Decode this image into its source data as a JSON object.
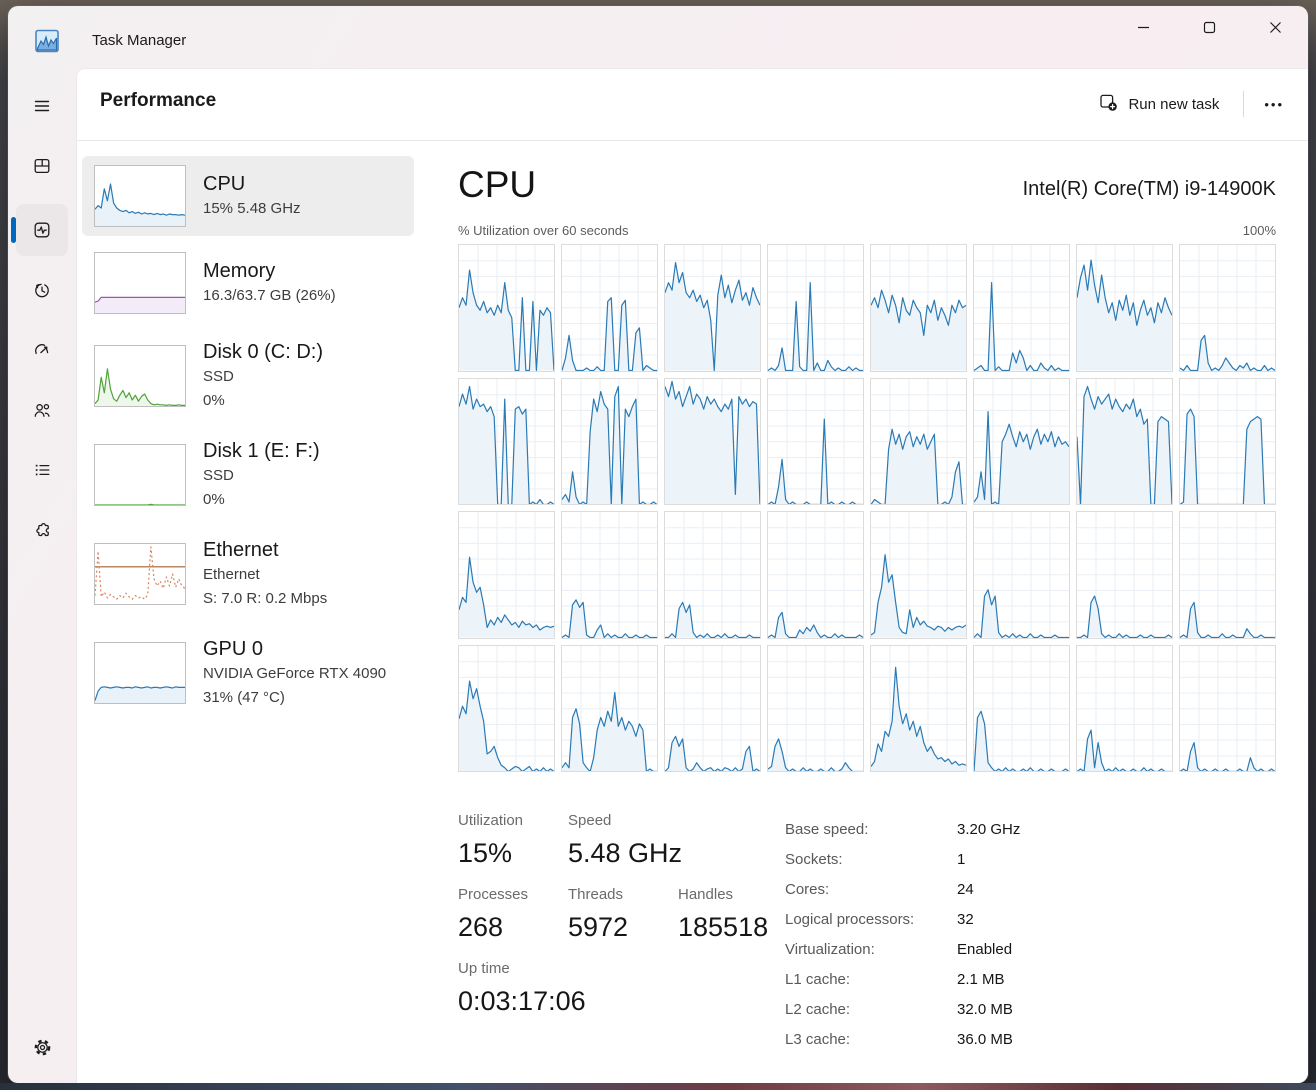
{
  "window": {
    "title": "Task Manager",
    "controls": [
      "minimize",
      "maximize",
      "close"
    ]
  },
  "sidebar": {
    "icons": [
      "menu-icon",
      "processes-icon",
      "performance-icon",
      "app-history-icon",
      "startup-apps-icon",
      "users-icon",
      "details-icon",
      "services-icon",
      "settings-icon"
    ],
    "selected": "performance-icon",
    "accent_color": "#0067c0"
  },
  "header": {
    "title": "Performance",
    "run_new_task": "Run new task",
    "more": "•••"
  },
  "perf_list": [
    {
      "id": "cpu",
      "title": "CPU",
      "lines": [
        "15%  5.48 GHz"
      ],
      "selected": true,
      "chart": {
        "color": "#2a7ab5",
        "fill": "#e9f2f9",
        "values": [
          28,
          34,
          30,
          62,
          42,
          70,
          38,
          30,
          26,
          24,
          26,
          22,
          24,
          21,
          23,
          20,
          22,
          20,
          21,
          19,
          21,
          19,
          20,
          18,
          20,
          19,
          19,
          18,
          19,
          18
        ]
      }
    },
    {
      "id": "memory",
      "title": "Memory",
      "lines": [
        "16.3/63.7 GB (26%)"
      ],
      "selected": false,
      "chart": {
        "color": "#9a55b2",
        "fill": "#f3ebf8",
        "values": [
          18,
          20,
          26,
          26,
          26,
          26,
          26,
          26,
          26,
          26,
          26,
          26,
          26,
          26,
          26,
          26,
          26,
          26,
          26,
          26,
          26,
          26,
          26,
          26,
          26,
          26,
          26,
          26,
          26,
          26
        ]
      }
    },
    {
      "id": "disk-0",
      "title": "Disk 0 (C: D:)",
      "lines": [
        "SSD",
        "0%"
      ],
      "selected": false,
      "chart": {
        "color": "#4fa33a",
        "fill": "#eef7eb",
        "values": [
          4,
          10,
          48,
          22,
          62,
          28,
          12,
          8,
          18,
          26,
          14,
          22,
          10,
          18,
          8,
          16,
          20,
          10,
          4,
          2,
          3,
          2,
          2,
          1,
          2,
          1,
          1,
          2,
          1,
          1
        ]
      }
    },
    {
      "id": "disk-1",
      "title": "Disk 1 (E: F:)",
      "lines": [
        "SSD",
        "0%"
      ],
      "selected": false,
      "chart": {
        "color": "#4fa33a",
        "fill": "#eef7eb",
        "values": [
          0,
          0,
          0,
          0,
          0,
          0,
          0,
          0,
          0,
          0,
          0,
          0,
          0,
          0,
          0,
          0,
          0,
          0,
          1,
          0,
          0,
          0,
          0,
          0,
          0,
          0,
          0,
          0,
          0,
          0
        ]
      }
    },
    {
      "id": "ethernet",
      "title": "Ethernet",
      "lines": [
        "Ethernet",
        "S: 7.0 R: 0.2 Mbps"
      ],
      "selected": false,
      "chart": {
        "color": "#d8825f",
        "dotted": true,
        "refline": 62,
        "refcolor": "#a2602f",
        "values": [
          14,
          88,
          12,
          20,
          10,
          16,
          12,
          8,
          14,
          10,
          18,
          12,
          8,
          14,
          10,
          12,
          8,
          16,
          95,
          42,
          30,
          38,
          26,
          45,
          30,
          50,
          28,
          42,
          30,
          26
        ]
      }
    },
    {
      "id": "gpu-0",
      "title": "GPU 0",
      "lines": [
        "NVIDIA GeForce RTX 4090",
        "31% (47 °C)"
      ],
      "selected": false,
      "chart": {
        "color": "#2a7ab5",
        "fill": "#e9f2f9",
        "values": [
          4,
          20,
          26,
          27,
          26,
          25,
          26,
          27,
          26,
          25,
          26,
          26,
          25,
          27,
          26,
          25,
          26,
          27,
          25,
          26,
          26,
          25,
          26,
          27,
          26,
          25,
          27,
          26,
          26,
          26
        ]
      }
    }
  ],
  "cpu_panel": {
    "title": "CPU",
    "processor": "Intel(R) Core(TM) i9-14900K",
    "graph_label": "% Utilization over 60 seconds",
    "graph_max": "100%",
    "core_style": {
      "color": "#2a7ab5",
      "fill": "#ecf3f9",
      "grid": "#e9eff5"
    },
    "cores": [
      [
        50,
        58,
        52,
        80,
        62,
        52,
        48,
        55,
        46,
        50,
        44,
        52,
        46,
        70,
        48,
        42,
        0,
        0,
        58,
        0,
        0,
        55,
        0,
        48,
        44,
        50,
        46,
        0
      ],
      [
        0,
        10,
        28,
        8,
        0,
        0,
        0,
        2,
        0,
        0,
        3,
        0,
        0,
        55,
        58,
        0,
        0,
        52,
        56,
        0,
        0,
        30,
        34,
        0,
        4,
        2,
        0,
        0
      ],
      [
        62,
        70,
        64,
        86,
        70,
        78,
        62,
        58,
        64,
        55,
        60,
        50,
        56,
        40,
        0,
        60,
        76,
        58,
        68,
        54,
        64,
        72,
        56,
        62,
        52,
        66,
        58,
        52
      ],
      [
        0,
        2,
        0,
        4,
        18,
        0,
        0,
        0,
        55,
        3,
        0,
        0,
        70,
        0,
        6,
        0,
        0,
        8,
        3,
        0,
        2,
        0,
        0,
        3,
        0,
        2,
        0,
        0
      ],
      [
        52,
        58,
        50,
        64,
        56,
        46,
        60,
        52,
        38,
        58,
        48,
        44,
        56,
        50,
        46,
        28,
        52,
        46,
        56,
        40,
        50,
        44,
        36,
        52,
        46,
        56,
        50,
        52
      ],
      [
        0,
        2,
        4,
        0,
        0,
        70,
        0,
        3,
        0,
        0,
        0,
        14,
        6,
        16,
        10,
        0,
        4,
        0,
        0,
        6,
        2,
        0,
        4,
        0,
        2,
        0,
        0,
        0
      ],
      [
        58,
        74,
        84,
        64,
        88,
        68,
        54,
        76,
        58,
        46,
        54,
        40,
        56,
        48,
        60,
        44,
        54,
        36,
        48,
        56,
        44,
        50,
        38,
        54,
        46,
        58,
        50,
        44
      ],
      [
        2,
        0,
        4,
        0,
        0,
        0,
        24,
        28,
        6,
        0,
        2,
        0,
        4,
        10,
        6,
        2,
        0,
        4,
        2,
        6,
        0,
        2,
        0,
        0,
        4,
        0,
        2,
        0
      ],
      [
        78,
        88,
        80,
        94,
        76,
        84,
        78,
        80,
        74,
        78,
        70,
        0,
        0,
        84,
        0,
        0,
        76,
        78,
        72,
        76,
        0,
        2,
        0,
        4,
        0,
        0,
        2,
        0
      ],
      [
        4,
        8,
        2,
        26,
        6,
        0,
        2,
        0,
        58,
        84,
        74,
        90,
        80,
        76,
        0,
        86,
        94,
        0,
        76,
        70,
        78,
        84,
        0,
        2,
        0,
        0,
        2,
        0
      ],
      [
        94,
        86,
        98,
        84,
        90,
        78,
        86,
        94,
        80,
        88,
        84,
        76,
        86,
        80,
        84,
        78,
        74,
        80,
        76,
        84,
        8,
        86,
        80,
        84,
        78,
        82,
        80,
        0
      ],
      [
        0,
        2,
        0,
        14,
        36,
        4,
        0,
        2,
        0,
        0,
        0,
        2,
        0,
        0,
        0,
        0,
        68,
        0,
        2,
        0,
        0,
        2,
        0,
        0,
        2,
        0,
        0,
        0
      ],
      [
        0,
        4,
        2,
        0,
        0,
        44,
        60,
        48,
        56,
        44,
        54,
        58,
        46,
        54,
        48,
        56,
        44,
        50,
        56,
        0,
        0,
        2,
        0,
        6,
        26,
        34,
        0,
        0
      ],
      [
        2,
        6,
        26,
        4,
        74,
        0,
        2,
        0,
        50,
        56,
        64,
        54,
        46,
        58,
        50,
        56,
        44,
        54,
        60,
        48,
        56,
        50,
        58,
        46,
        54,
        48,
        50,
        46
      ],
      [
        54,
        0,
        86,
        94,
        84,
        76,
        86,
        80,
        84,
        88,
        76,
        84,
        78,
        74,
        80,
        76,
        84,
        70,
        76,
        64,
        68,
        0,
        0,
        66,
        70,
        68,
        66,
        0
      ],
      [
        0,
        2,
        72,
        76,
        70,
        0,
        0,
        0,
        0,
        0,
        0,
        0,
        0,
        0,
        0,
        0,
        0,
        0,
        0,
        60,
        66,
        68,
        70,
        68,
        0,
        0,
        0,
        0
      ],
      [
        22,
        32,
        28,
        64,
        44,
        36,
        40,
        26,
        8,
        14,
        10,
        16,
        12,
        18,
        14,
        10,
        12,
        8,
        13,
        10,
        11,
        8,
        10,
        6,
        8,
        9,
        8,
        9
      ],
      [
        0,
        2,
        0,
        26,
        30,
        24,
        28,
        2,
        0,
        0,
        6,
        10,
        0,
        3,
        0,
        2,
        0,
        0,
        3,
        0,
        0,
        2,
        0,
        0,
        2,
        0,
        0,
        0
      ],
      [
        0,
        0,
        3,
        0,
        23,
        28,
        20,
        26,
        4,
        0,
        2,
        0,
        3,
        0,
        0,
        2,
        0,
        3,
        0,
        0,
        2,
        0,
        0,
        0,
        2,
        0,
        0,
        0
      ],
      [
        0,
        2,
        0,
        16,
        20,
        3,
        0,
        0,
        0,
        6,
        3,
        8,
        5,
        10,
        4,
        0,
        2,
        0,
        0,
        3,
        0,
        2,
        0,
        0,
        0,
        0,
        2,
        0
      ],
      [
        2,
        4,
        28,
        40,
        66,
        44,
        50,
        28,
        8,
        4,
        3,
        22,
        8,
        16,
        10,
        13,
        9,
        8,
        6,
        9,
        8,
        5,
        8,
        6,
        8,
        9,
        8,
        10
      ],
      [
        0,
        3,
        0,
        33,
        38,
        26,
        33,
        4,
        0,
        2,
        0,
        3,
        0,
        2,
        0,
        0,
        3,
        0,
        0,
        2,
        0,
        0,
        0,
        2,
        0,
        0,
        0,
        0
      ],
      [
        0,
        0,
        2,
        0,
        28,
        33,
        23,
        3,
        0,
        2,
        0,
        0,
        3,
        0,
        2,
        0,
        0,
        0,
        2,
        0,
        0,
        2,
        0,
        0,
        0,
        0,
        2,
        0
      ],
      [
        0,
        2,
        0,
        23,
        28,
        4,
        0,
        0,
        2,
        0,
        0,
        0,
        3,
        0,
        0,
        2,
        0,
        0,
        0,
        7,
        3,
        0,
        0,
        2,
        0,
        0,
        0,
        0
      ],
      [
        42,
        52,
        46,
        72,
        58,
        66,
        52,
        40,
        14,
        16,
        20,
        11,
        5,
        3,
        0,
        2,
        4,
        3,
        0,
        2,
        4,
        0,
        2,
        0,
        3,
        0,
        2,
        0
      ],
      [
        3,
        7,
        3,
        43,
        50,
        38,
        7,
        3,
        0,
        11,
        33,
        43,
        36,
        48,
        40,
        63,
        36,
        43,
        33,
        40,
        36,
        28,
        38,
        33,
        0,
        2,
        0,
        0
      ],
      [
        0,
        3,
        23,
        28,
        20,
        26,
        3,
        0,
        2,
        7,
        3,
        0,
        2,
        3,
        0,
        2,
        0,
        3,
        2,
        0,
        3,
        0,
        2,
        16,
        20,
        0,
        2,
        0
      ],
      [
        2,
        4,
        20,
        26,
        16,
        3,
        0,
        2,
        0,
        0,
        3,
        0,
        2,
        0,
        0,
        2,
        0,
        0,
        3,
        0,
        0,
        2,
        7,
        3,
        0,
        0,
        0,
        0
      ],
      [
        4,
        8,
        22,
        16,
        32,
        28,
        40,
        83,
        52,
        38,
        46,
        33,
        40,
        28,
        36,
        23,
        16,
        20,
        14,
        10,
        11,
        8,
        10,
        6,
        8,
        5,
        6,
        5
      ],
      [
        0,
        43,
        48,
        38,
        7,
        3,
        0,
        2,
        0,
        3,
        0,
        2,
        0,
        0,
        2,
        0,
        3,
        0,
        0,
        2,
        0,
        0,
        2,
        0,
        0,
        0,
        2,
        0
      ],
      [
        0,
        2,
        0,
        26,
        33,
        3,
        23,
        7,
        0,
        2,
        0,
        3,
        0,
        2,
        0,
        0,
        2,
        0,
        0,
        3,
        0,
        2,
        0,
        0,
        2,
        0,
        0,
        0
      ],
      [
        0,
        2,
        0,
        16,
        23,
        3,
        0,
        2,
        0,
        0,
        2,
        0,
        0,
        2,
        0,
        0,
        0,
        2,
        0,
        0,
        11,
        3,
        0,
        2,
        0,
        0,
        2,
        0
      ]
    ],
    "stats": {
      "groups": [
        {
          "items": [
            {
              "label": "Utilization",
              "value": "15%"
            },
            {
              "label": "Speed",
              "value": "5.48 GHz"
            }
          ]
        },
        {
          "items": [
            {
              "label": "Processes",
              "value": "268"
            },
            {
              "label": "Threads",
              "value": "5972"
            },
            {
              "label": "Handles",
              "value": "185518"
            }
          ]
        },
        {
          "items": [
            {
              "label": "Up time",
              "value": "0:03:17:06"
            }
          ]
        }
      ],
      "details": [
        {
          "label": "Base speed:",
          "value": "3.20 GHz"
        },
        {
          "label": "Sockets:",
          "value": "1"
        },
        {
          "label": "Cores:",
          "value": "24"
        },
        {
          "label": "Logical processors:",
          "value": "32"
        },
        {
          "label": "Virtualization:",
          "value": "Enabled"
        },
        {
          "label": "L1 cache:",
          "value": "2.1 MB"
        },
        {
          "label": "L2 cache:",
          "value": "32.0 MB"
        },
        {
          "label": "L3 cache:",
          "value": "36.0 MB"
        }
      ]
    }
  }
}
